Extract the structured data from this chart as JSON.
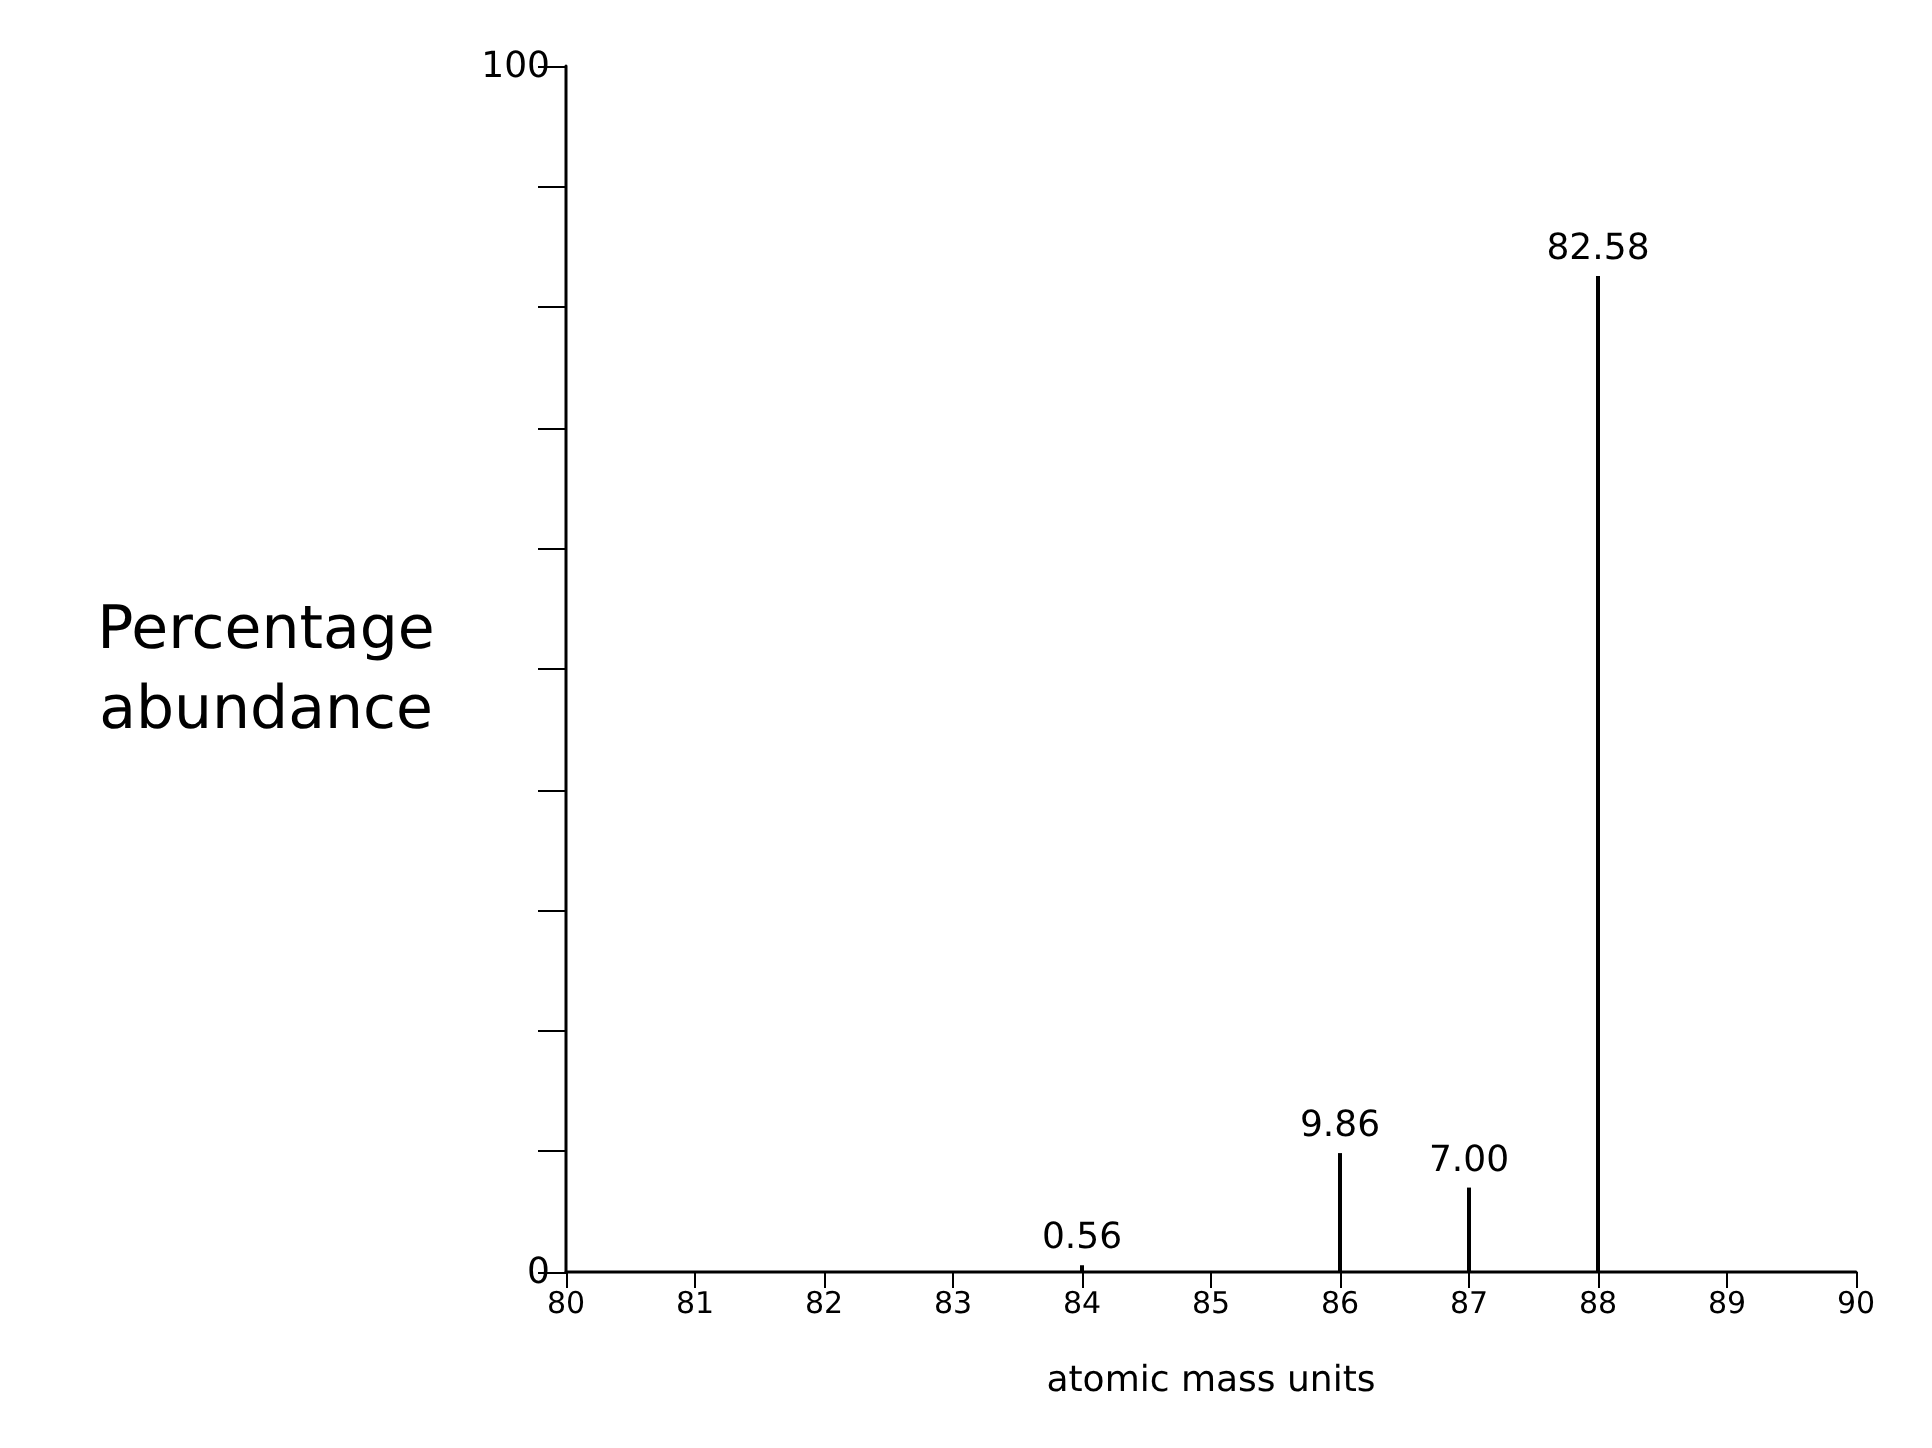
{
  "chart_data": {
    "type": "bar",
    "xlabel": "atomic mass units",
    "ylabel": "Percentage abundance",
    "x": [
      84,
      86,
      87,
      88
    ],
    "values": [
      0.56,
      9.86,
      7.0,
      82.58
    ],
    "value_labels": [
      "0.56",
      "9.86",
      "7.00",
      "82.58"
    ],
    "color": "#000000",
    "xlim": [
      80,
      90
    ],
    "xticks": [
      80,
      81,
      82,
      83,
      84,
      85,
      86,
      87,
      88,
      89,
      90
    ],
    "ylim": [
      0,
      100
    ],
    "yticks": [
      0,
      {
        "value": 10,
        "label": null
      },
      {
        "value": 20,
        "label": null
      },
      {
        "value": 30,
        "label": null
      },
      {
        "value": 40,
        "label": null
      },
      {
        "value": 50,
        "label": null
      },
      {
        "value": 60,
        "label": null
      },
      {
        "value": 70,
        "label": null
      },
      {
        "value": 80,
        "label": null
      },
      {
        "value": 90,
        "label": null
      },
      100
    ],
    "grid": false
  }
}
